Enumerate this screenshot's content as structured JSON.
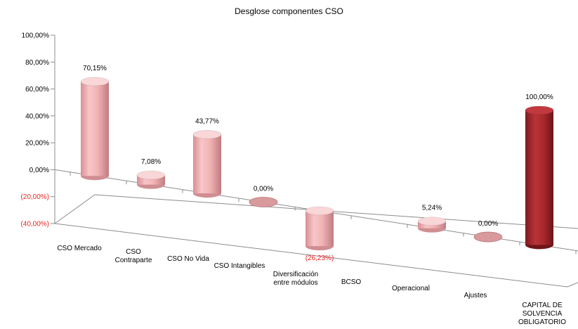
{
  "chart_data": {
    "type": "bar",
    "style": "3d-cylinder",
    "title": "Desglose componentes CSO",
    "xlabel": "",
    "ylabel": "",
    "ylim": [
      -40,
      100
    ],
    "yticks": [
      {
        "value": 100,
        "label": "100,00%"
      },
      {
        "value": 80,
        "label": "80,00%"
      },
      {
        "value": 60,
        "label": "60,00%"
      },
      {
        "value": 40,
        "label": "40,00%"
      },
      {
        "value": 20,
        "label": "20,00%"
      },
      {
        "value": 0,
        "label": "0,00%"
      },
      {
        "value": -20,
        "label": "(20,00%)"
      },
      {
        "value": -40,
        "label": "(40,00%)"
      }
    ],
    "categories": [
      [
        "CSO Mercado"
      ],
      [
        "CSO",
        "Contraparte"
      ],
      [
        "CSO No Vida"
      ],
      [
        "CSO Intangibles"
      ],
      [
        "Diversificación",
        "entre módulos"
      ],
      [
        "BCSO"
      ],
      [
        "Operacional"
      ],
      [
        "Ajustes"
      ],
      [
        "CAPITAL DE",
        "SOLVENCIA",
        "OBLIGATORIO"
      ]
    ],
    "values": [
      70.15,
      7.08,
      43.77,
      0.0,
      -26.23,
      null,
      5.24,
      0.0,
      100.0
    ],
    "data_labels": [
      "70,15%",
      "7,08%",
      "43,77%",
      "0,00%",
      "(26,23%)",
      "",
      "5,24%",
      "0,00%",
      "100,00%"
    ],
    "bar_style": [
      "base",
      "base",
      "base",
      "base",
      "float",
      "none",
      "float",
      "float",
      "total"
    ],
    "colors": {
      "component": "#f2b5b7",
      "total": "#a8282d",
      "negative_label": "#e8231e",
      "axis": "#8c8c8c"
    },
    "grid": false,
    "legend": "none"
  }
}
